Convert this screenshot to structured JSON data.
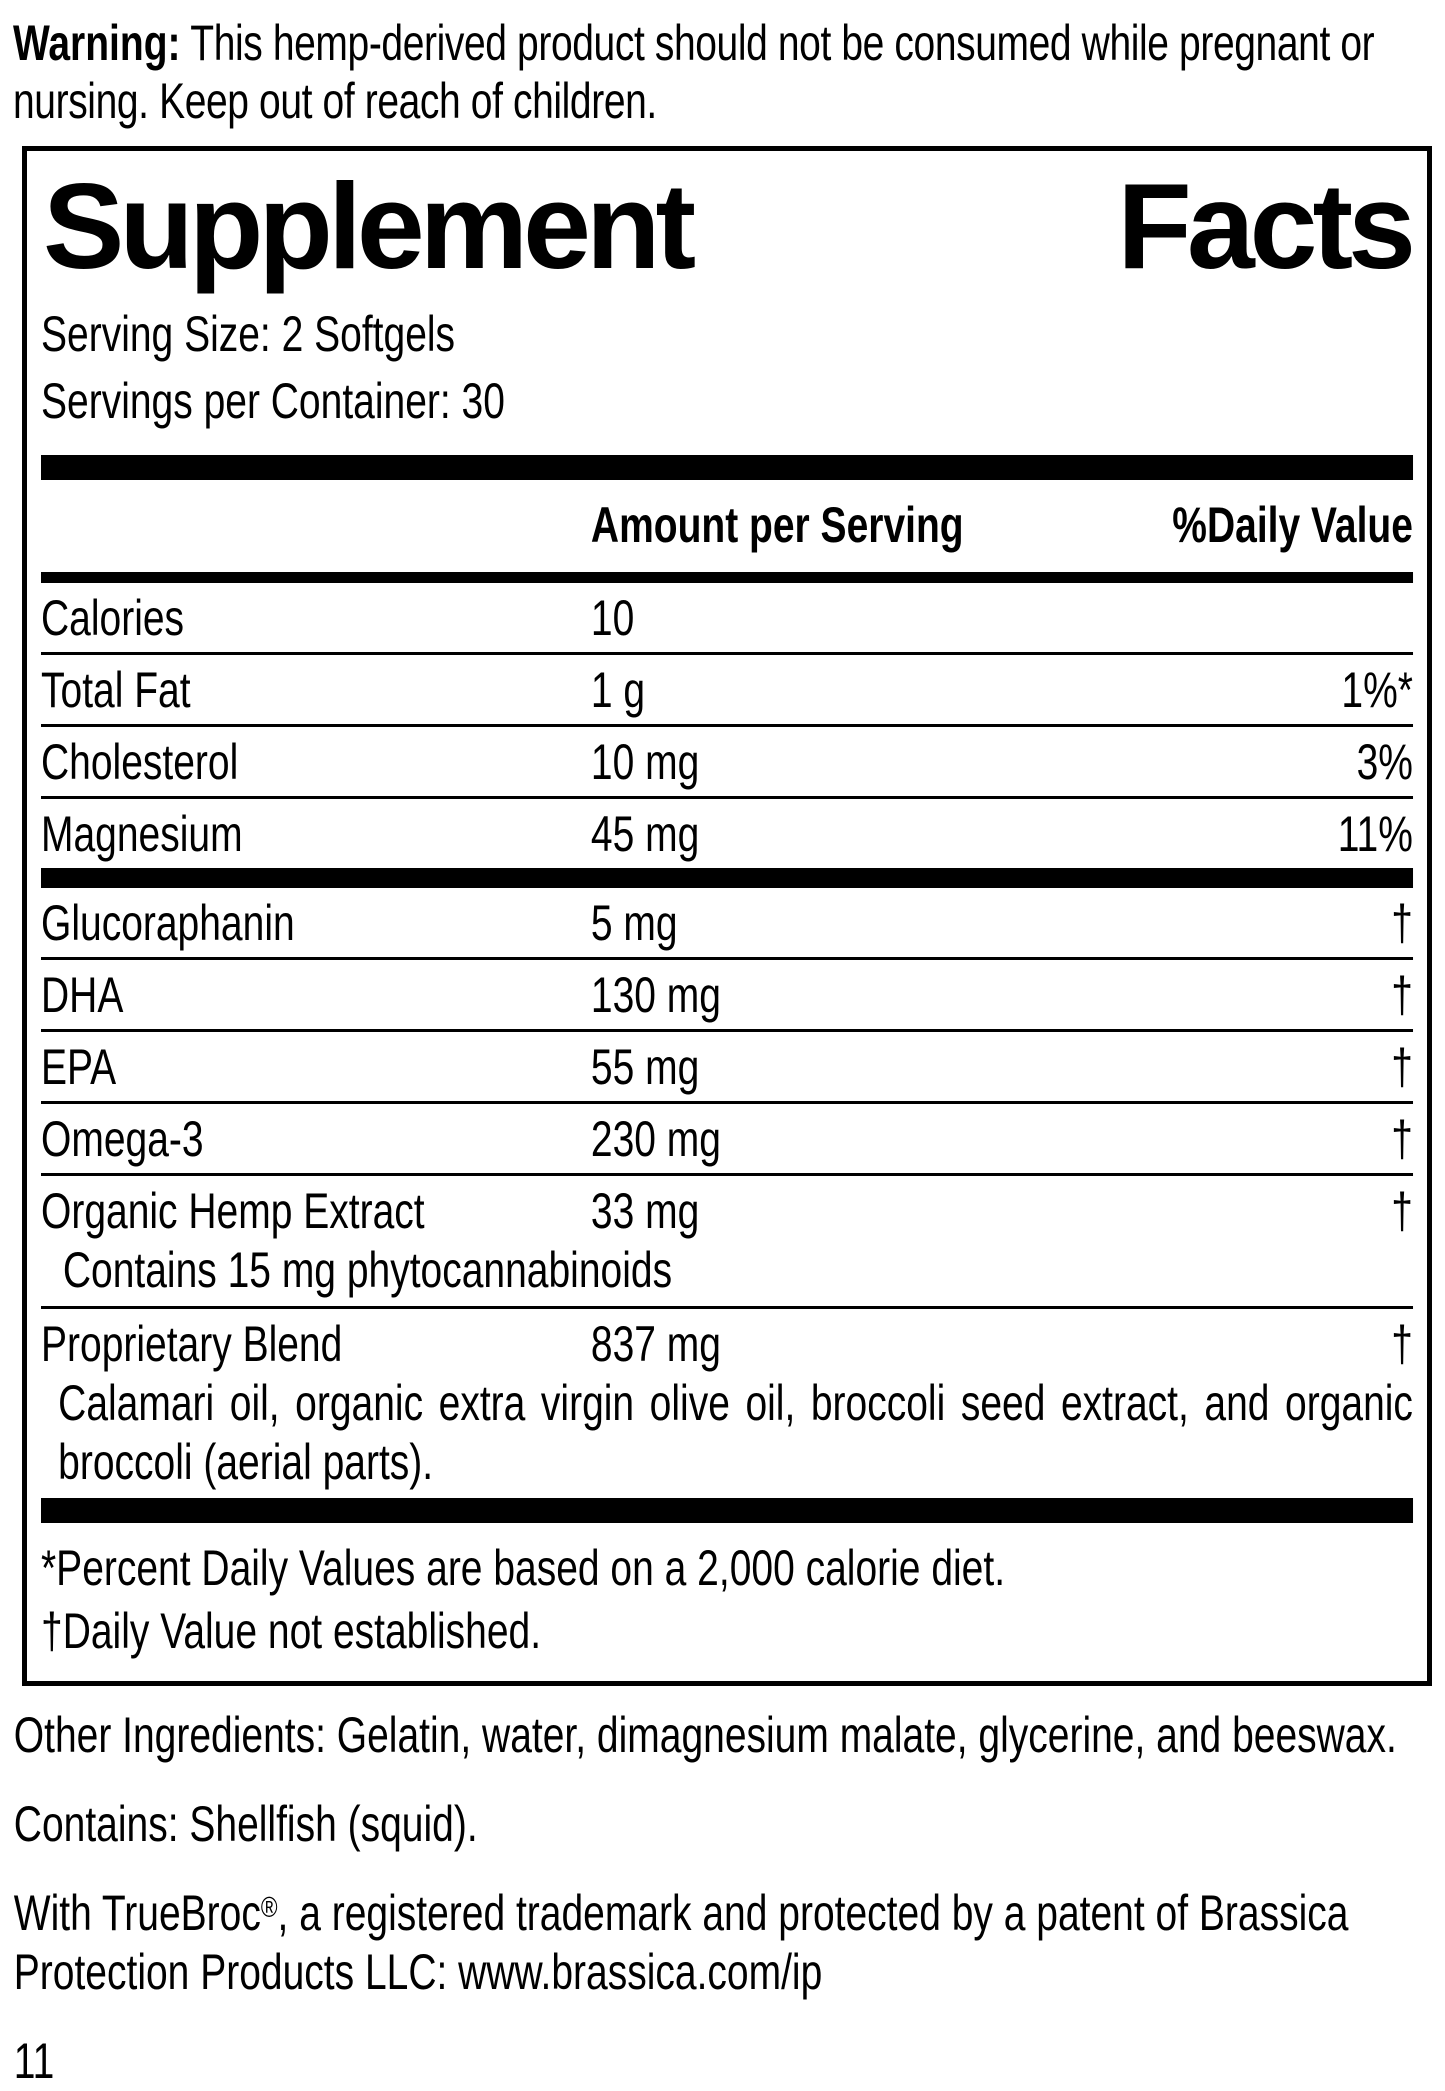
{
  "warning": {
    "label": "Warning:",
    "text": " This hemp-derived product should not be consumed while pregnant or nursing. Keep out of reach of children."
  },
  "panel": {
    "title_left": "Supplement",
    "title_right": "Facts",
    "serving_size": "Serving Size: 2 Softgels",
    "servings_per_container": "Servings per Container: 30",
    "columns": {
      "amount": "Amount per Serving",
      "daily_value": "%Daily Value"
    },
    "rows_main": [
      {
        "name": "Calories",
        "amount": "10",
        "dv": ""
      },
      {
        "name": "Total Fat",
        "amount": "1 g",
        "dv": "1%*"
      },
      {
        "name": "Cholesterol",
        "amount": "10 mg",
        "dv": "3%"
      },
      {
        "name": "Magnesium",
        "amount": "45 mg",
        "dv": "11%"
      }
    ],
    "rows_supplement": [
      {
        "name": "Glucoraphanin",
        "amount": "5 mg",
        "dv": "†"
      },
      {
        "name": "DHA",
        "amount": "130 mg",
        "dv": "†"
      },
      {
        "name": "EPA",
        "amount": "55 mg",
        "dv": "†"
      },
      {
        "name": "Omega-3",
        "amount": "230 mg",
        "dv": "†"
      },
      {
        "name": "Organic Hemp Extract",
        "amount": "33 mg",
        "dv": "†",
        "sub": "Contains 15 mg phytocannabinoids"
      },
      {
        "name": "Proprietary Blend",
        "amount": "837 mg",
        "dv": "†",
        "sub": "Calamari oil, organic extra virgin olive oil, broccoli seed extract, and organic broccoli (aerial parts).",
        "sub_justify": true
      }
    ],
    "footnotes": [
      "*Percent Daily Values are based on a 2,000 calorie diet.",
      "†Daily Value not established."
    ]
  },
  "notes": {
    "other_ingredients": "Other Ingredients: Gelatin, water, dimagnesium malate, glycerine, and beeswax.",
    "contains": "Contains: Shellfish (squid).",
    "trademark_prefix": "With TrueBroc",
    "trademark_symbol": "®",
    "trademark_suffix": ", a registered trademark and protected by a patent of Brassica Protection Products LLC: www.brassica.com/ip"
  },
  "page_number": "11",
  "colors": {
    "ink": "#000000",
    "paper": "#ffffff"
  }
}
